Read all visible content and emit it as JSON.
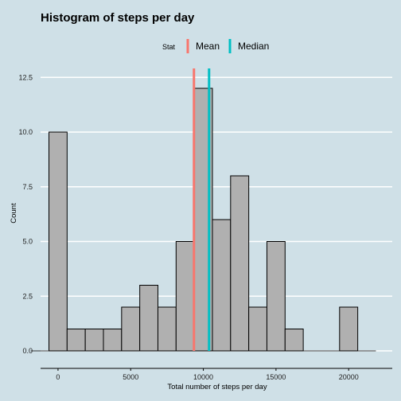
{
  "chart_data": {
    "type": "histogram",
    "title": "Histogram of steps per day",
    "xlabel": "Total number of steps per day",
    "ylabel": "Count",
    "xlim": [
      -1200,
      23000
    ],
    "ylim": [
      -0.8,
      13.2
    ],
    "xticks": [
      0,
      5000,
      10000,
      15000,
      20000
    ],
    "xtick_labels": [
      "0",
      "5000",
      "10000",
      "15000",
      "20000"
    ],
    "yticks": [
      0,
      2.5,
      5,
      7.5,
      10,
      12.5
    ],
    "ytick_labels": [
      "0.0",
      "2.5",
      "5.0",
      "7.5",
      "10.0",
      "12.5"
    ],
    "bin_width": 1250,
    "bins": [
      {
        "x0": -625,
        "x1": 625,
        "count": 10
      },
      {
        "x0": 625,
        "x1": 1875,
        "count": 1
      },
      {
        "x0": 1875,
        "x1": 3125,
        "count": 1
      },
      {
        "x0": 3125,
        "x1": 4375,
        "count": 1
      },
      {
        "x0": 4375,
        "x1": 5625,
        "count": 2
      },
      {
        "x0": 5625,
        "x1": 6875,
        "count": 3
      },
      {
        "x0": 6875,
        "x1": 8125,
        "count": 2
      },
      {
        "x0": 8125,
        "x1": 9375,
        "count": 5
      },
      {
        "x0": 9375,
        "x1": 10625,
        "count": 12
      },
      {
        "x0": 10625,
        "x1": 11875,
        "count": 6
      },
      {
        "x0": 11875,
        "x1": 13125,
        "count": 8
      },
      {
        "x0": 13125,
        "x1": 14375,
        "count": 2
      },
      {
        "x0": 14375,
        "x1": 15625,
        "count": 5
      },
      {
        "x0": 15625,
        "x1": 16875,
        "count": 1
      },
      {
        "x0": 16875,
        "x1": 18125,
        "count": 0
      },
      {
        "x0": 18125,
        "x1": 19375,
        "count": 0
      },
      {
        "x0": 19375,
        "x1": 20625,
        "count": 2
      }
    ],
    "vlines": [
      {
        "name": "Mean",
        "value": 9354,
        "color": "#f8766d"
      },
      {
        "name": "Median",
        "value": 10395,
        "color": "#00bfc4"
      }
    ],
    "legend": {
      "title": "Stat",
      "placement": "top"
    },
    "grid": true,
    "colors": {
      "background": "#cfe0e7",
      "bar_fill": "#b0b0b0",
      "bar_stroke": "#000000",
      "grid": "#ffffff"
    }
  }
}
